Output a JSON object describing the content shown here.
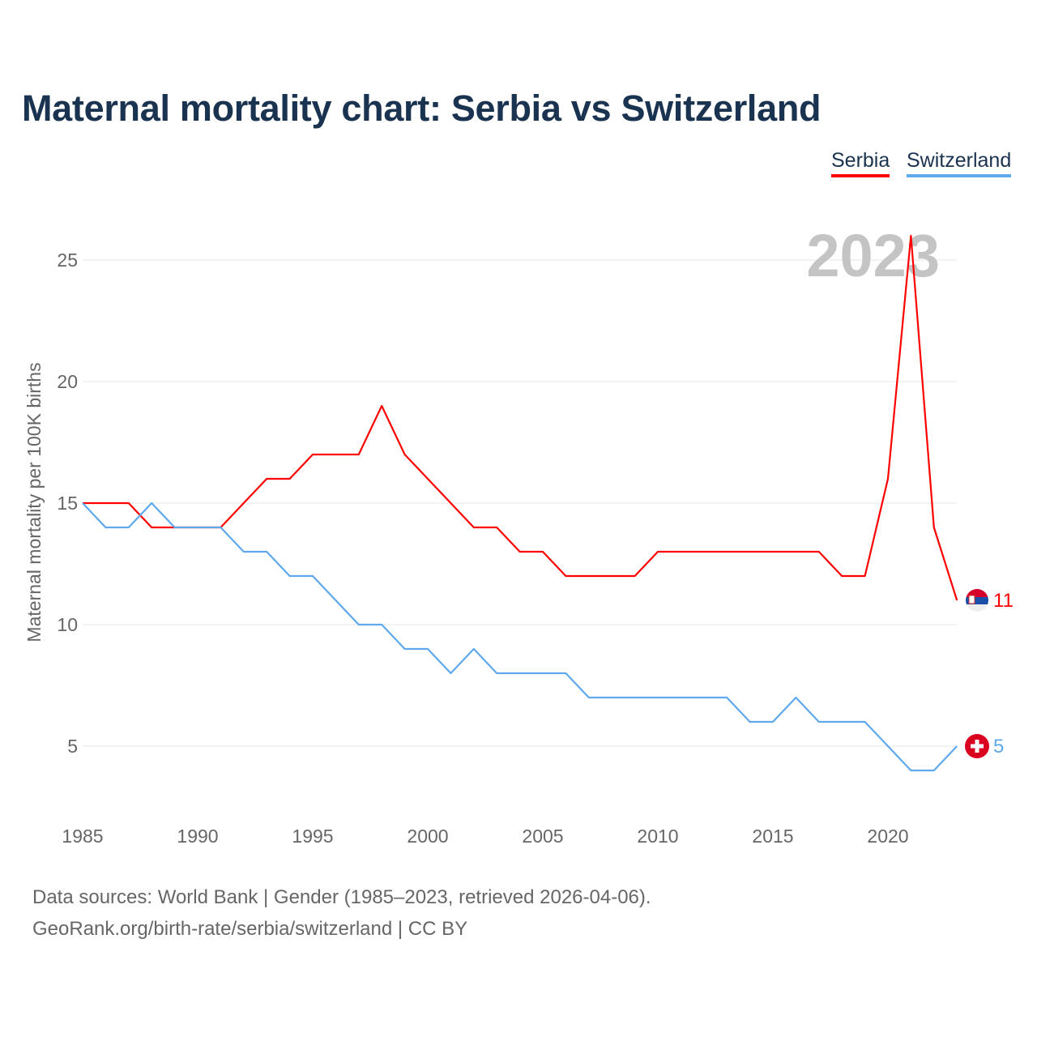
{
  "title": "Maternal mortality chart: Serbia vs Switzerland",
  "legend": [
    {
      "label": "Serbia",
      "color": "#ff0000"
    },
    {
      "label": "Switzerland",
      "color": "#5fa8ec"
    }
  ],
  "footer": {
    "line1": "Data sources: World Bank | Gender (1985–2023, retrieved 2026-04-06).",
    "line2": "GeoRank.org/birth-rate/serbia/switzerland | CC BY"
  },
  "chart_data": {
    "type": "line",
    "title": "Maternal mortality chart: Serbia vs Switzerland",
    "ylabel": "Maternal mortality per 100K births",
    "xlabel": "",
    "year_watermark": "2023",
    "x": [
      1985,
      1986,
      1987,
      1988,
      1989,
      1990,
      1991,
      1992,
      1993,
      1994,
      1995,
      1996,
      1997,
      1998,
      1999,
      2000,
      2001,
      2002,
      2003,
      2004,
      2005,
      2006,
      2007,
      2008,
      2009,
      2010,
      2011,
      2012,
      2013,
      2014,
      2015,
      2016,
      2017,
      2018,
      2019,
      2020,
      2021,
      2022,
      2023
    ],
    "xlim": [
      1985,
      2023
    ],
    "ylim": [
      2.5,
      27
    ],
    "xticks": [
      1985,
      1990,
      1995,
      2000,
      2005,
      2010,
      2015,
      2020
    ],
    "yticks": [
      5,
      10,
      15,
      20,
      25
    ],
    "grid": true,
    "legend_position": "top-right",
    "series": [
      {
        "name": "Serbia",
        "color": "#ff0000",
        "end_label": "11",
        "values": [
          15,
          15,
          15,
          14,
          14,
          14,
          14,
          15,
          16,
          16,
          17,
          17,
          17,
          19,
          17,
          16,
          15,
          14,
          14,
          13,
          13,
          12,
          12,
          12,
          12,
          13,
          13,
          13,
          13,
          13,
          13,
          13,
          13,
          12,
          12,
          16,
          26,
          14,
          11
        ]
      },
      {
        "name": "Switzerland",
        "color": "#5fa8ec",
        "end_label": "5",
        "values": [
          15,
          14,
          14,
          15,
          14,
          14,
          14,
          13,
          13,
          12,
          12,
          11,
          10,
          10,
          9,
          9,
          8,
          9,
          8,
          8,
          8,
          8,
          7,
          7,
          7,
          7,
          7,
          7,
          7,
          6,
          6,
          7,
          6,
          6,
          6,
          5,
          4,
          4,
          5
        ]
      }
    ]
  }
}
